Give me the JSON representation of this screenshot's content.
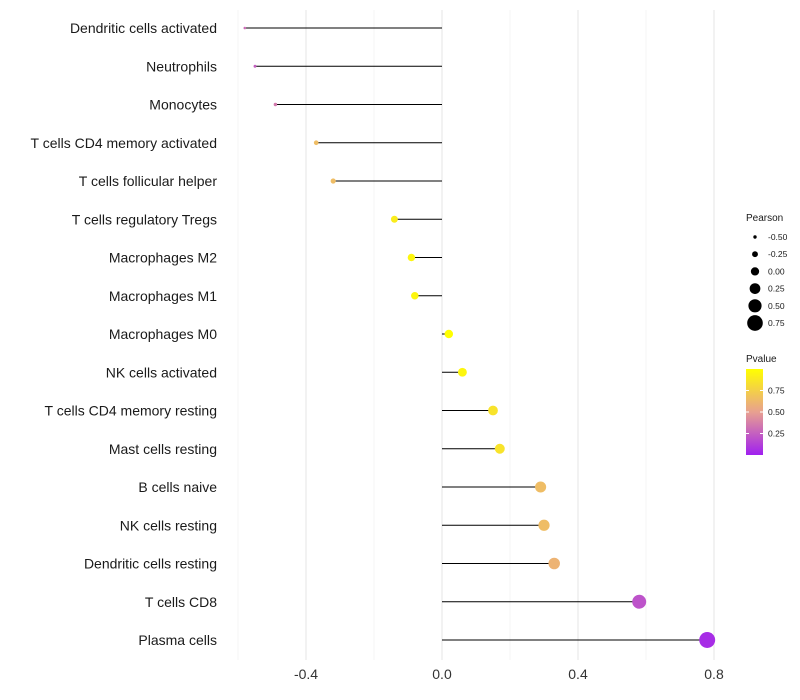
{
  "chart_data": {
    "type": "lollipop",
    "title": "",
    "xlabel": "",
    "ylabel": "",
    "xlim": [
      -0.6,
      0.8
    ],
    "x_ticks": [
      -0.4,
      0.0,
      0.4,
      0.8
    ],
    "x_tick_labels": [
      "-0.4",
      "0.0",
      "0.4",
      "0.8"
    ],
    "grid": true,
    "categories": [
      "Dendritic cells activated",
      "Neutrophils",
      "Monocytes",
      "T cells CD4 memory activated",
      "T cells follicular helper",
      "T cells regulatory  Tregs ",
      "Macrophages M2",
      "Macrophages M1",
      "Macrophages M0",
      "NK cells activated",
      "T cells CD4 memory resting",
      "Mast cells resting",
      "B cells naive",
      "NK cells resting",
      "Dendritic cells resting",
      "T cells CD8",
      "Plasma cells"
    ],
    "pearson": [
      -0.58,
      -0.55,
      -0.49,
      -0.37,
      -0.32,
      -0.14,
      -0.09,
      -0.08,
      0.02,
      0.06,
      0.15,
      0.17,
      0.29,
      0.3,
      0.33,
      0.58,
      0.78
    ],
    "pvalue": [
      0.3,
      0.25,
      0.35,
      0.65,
      0.65,
      0.9,
      0.95,
      0.95,
      1.0,
      0.95,
      0.85,
      0.85,
      0.65,
      0.65,
      0.6,
      0.2,
      0.05
    ],
    "legend_size": {
      "title": "Pearson",
      "values": [
        -0.5,
        -0.25,
        0.0,
        0.25,
        0.5,
        0.75
      ],
      "labels": [
        "-0.50",
        "-0.25",
        "0.00",
        "0.25",
        "0.50",
        "0.75"
      ]
    },
    "legend_color": {
      "title": "Pvalue",
      "ticks": [
        0.75,
        0.5,
        0.25
      ],
      "labels": [
        "0.75",
        "0.50",
        "0.25"
      ],
      "range": [
        0.0,
        1.0
      ],
      "colors": [
        "#a020f0",
        "#e8a090",
        "#ffff00"
      ]
    },
    "legend_position": "right"
  }
}
